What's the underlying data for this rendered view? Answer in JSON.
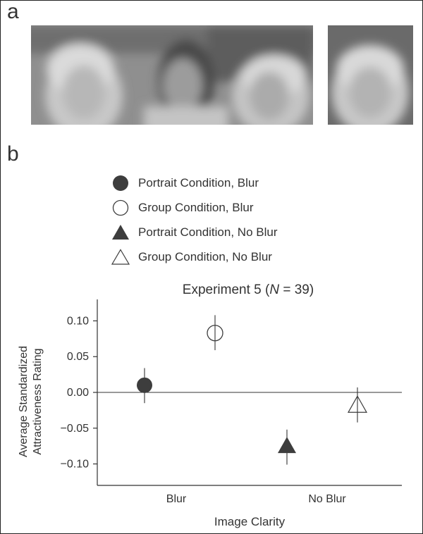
{
  "panel_a_label": "a",
  "panel_b_label": "b",
  "legend": [
    {
      "label": "Portrait Condition, Blur",
      "icon": "filled-circle-icon"
    },
    {
      "label": "Group Condition, Blur",
      "icon": "open-circle-icon"
    },
    {
      "label": "Portrait Condition, No Blur",
      "icon": "filled-triangle-icon"
    },
    {
      "label": "Group Condition, No Blur",
      "icon": "open-triangle-icon"
    }
  ],
  "colors": {
    "marker_dark": "#3d3d3d",
    "marker_open": "#ffffff",
    "axis": "#333333",
    "photo_gray": "#9a9a9a"
  },
  "chart_data": {
    "type": "scatter",
    "title_prefix": "Experiment 5 (",
    "title_italic": "N",
    "title_suffix": " = 39)",
    "xlabel": "Image Clarity",
    "ylabel_line1": "Average Standardized",
    "ylabel_line2": "Attractiveness Rating",
    "categories": [
      "Blur",
      "No Blur"
    ],
    "ylim": [
      -0.13,
      0.13
    ],
    "yticks": [
      0.1,
      0.05,
      0.0,
      -0.05,
      -0.1
    ],
    "ytick_labels": [
      "0.10",
      "0.05",
      "0.00",
      "−0.05",
      "−0.10"
    ],
    "reference_line_y": 0.0,
    "series": [
      {
        "name": "Portrait Condition, Blur",
        "marker": "filled-circle",
        "x": "Blur",
        "y": 0.01,
        "err_low": -0.015,
        "err_high": 0.034
      },
      {
        "name": "Group Condition, Blur",
        "marker": "open-circle",
        "x": "Blur",
        "y": 0.083,
        "err_low": 0.059,
        "err_high": 0.108
      },
      {
        "name": "Portrait Condition, No Blur",
        "marker": "filled-triangle",
        "x": "No Blur",
        "y": -0.075,
        "err_low": -0.101,
        "err_high": -0.052
      },
      {
        "name": "Group Condition, No Blur",
        "marker": "open-triangle",
        "x": "No Blur",
        "y": -0.018,
        "err_low": -0.042,
        "err_high": 0.007
      }
    ]
  }
}
